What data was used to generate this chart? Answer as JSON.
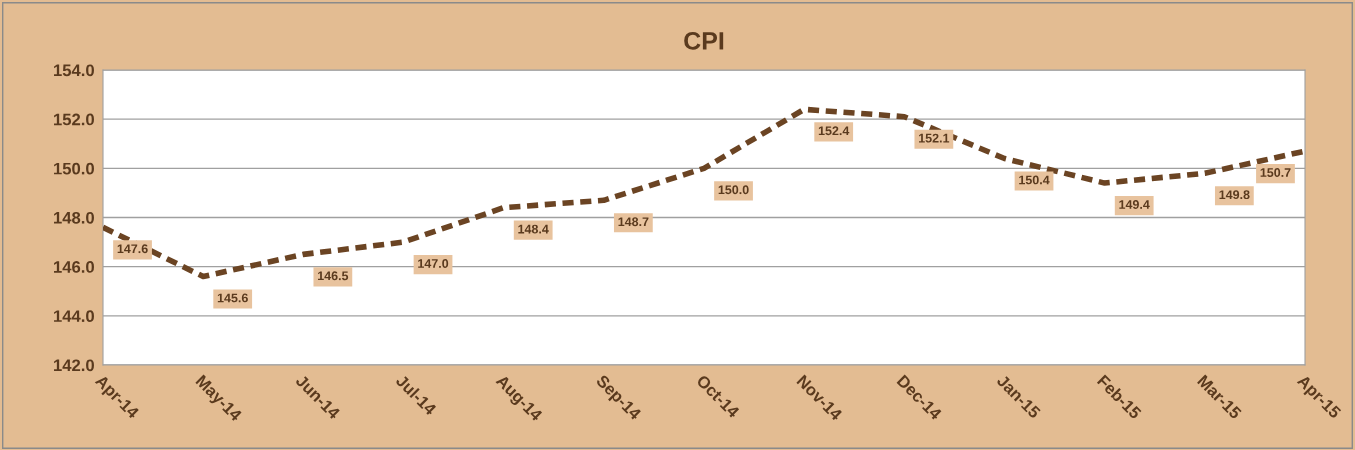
{
  "chart_data": {
    "type": "line",
    "title": "CPI",
    "categories": [
      "Apr-14",
      "May-14",
      "Jun-14",
      "Jul-14",
      "Aug-14",
      "Sep-14",
      "Oct-14",
      "Nov-14",
      "Dec-14",
      "Jan-15",
      "Feb-15",
      "Mar-15",
      "Apr-15"
    ],
    "series": [
      {
        "color": "#6b4423",
        "values": [
          147.6,
          145.6,
          146.5,
          147.0,
          148.4,
          148.7,
          150.0,
          152.4,
          152.1,
          150.4,
          149.4,
          149.8,
          150.7
        ],
        "value_labels": [
          "147.6",
          "145.6",
          "146.5",
          "147.0",
          "148.4",
          "148.7",
          "150.0",
          "152.4",
          "152.1",
          "150.4",
          "149.4",
          "149.8",
          "150.7"
        ]
      }
    ],
    "ylim": [
      142,
      154
    ],
    "yticks": [
      {
        "value": 142,
        "label": "142.0"
      },
      {
        "value": 144,
        "label": "144.0"
      },
      {
        "value": 146,
        "label": "146.0"
      },
      {
        "value": 148,
        "label": "148.0"
      },
      {
        "value": 150,
        "label": "150.0"
      },
      {
        "value": 152,
        "label": "152.0"
      },
      {
        "value": 154,
        "label": "154.0"
      }
    ],
    "grid": "y",
    "marker": "none",
    "line_style": "dashed"
  }
}
